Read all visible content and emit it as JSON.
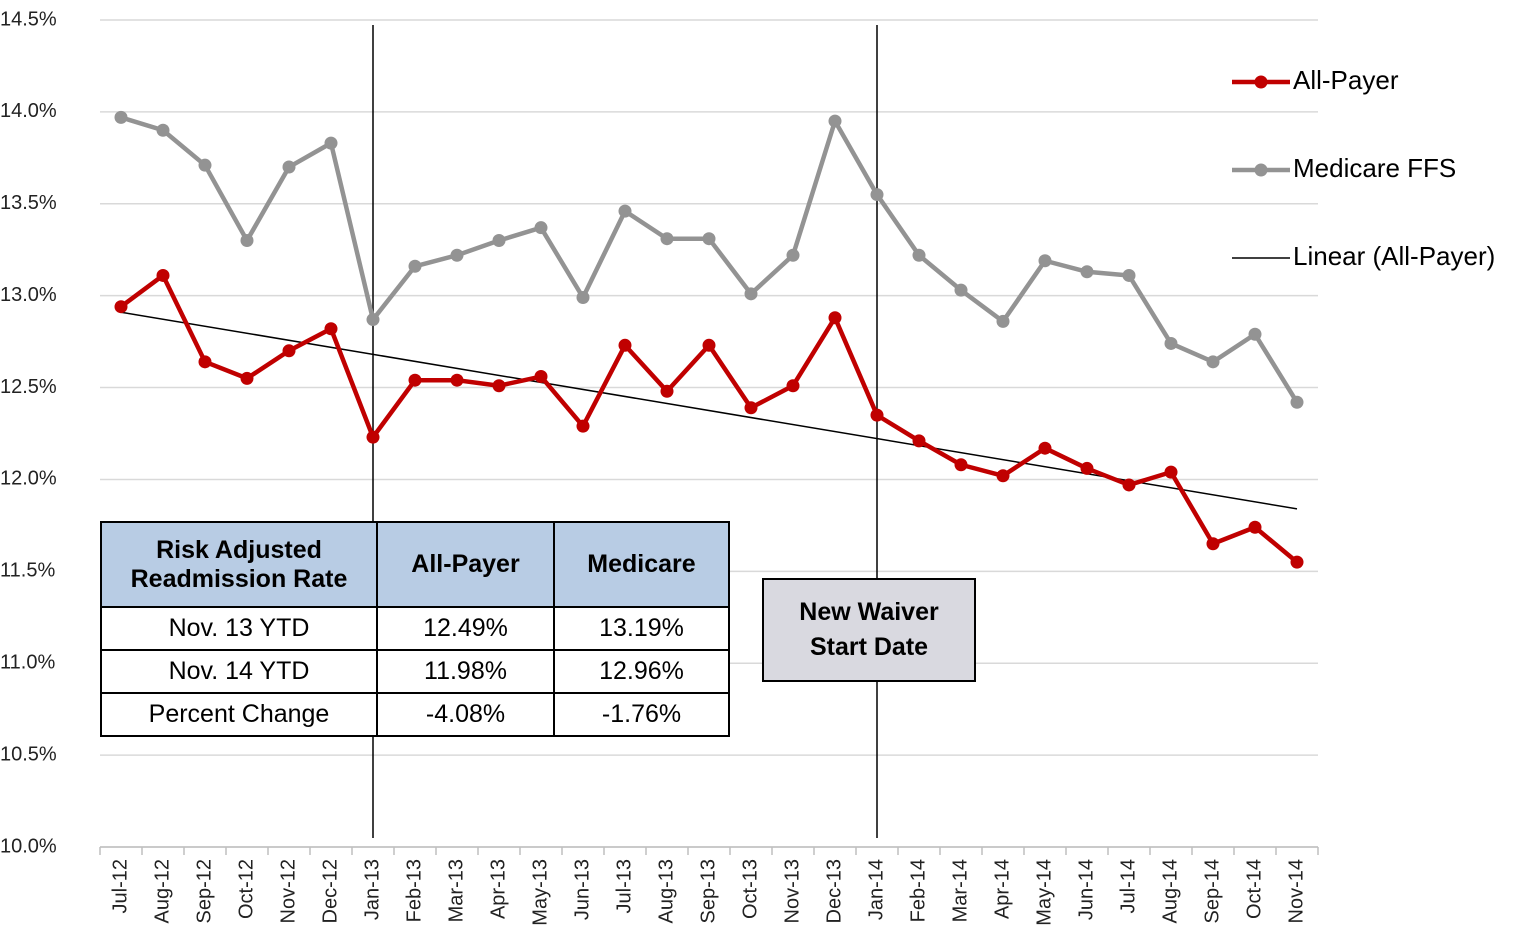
{
  "chart_data": {
    "type": "line",
    "categories": [
      "Jul-12",
      "Aug-12",
      "Sep-12",
      "Oct-12",
      "Nov-12",
      "Dec-12",
      "Jan-13",
      "Feb-13",
      "Mar-13",
      "Apr-13",
      "May-13",
      "Jun-13",
      "Jul-13",
      "Aug-13",
      "Sep-13",
      "Oct-13",
      "Nov-13",
      "Dec-13",
      "Jan-14",
      "Feb-14",
      "Mar-14",
      "Apr-14",
      "May-14",
      "Jun-14",
      "Jul-14",
      "Aug-14",
      "Sep-14",
      "Oct-14",
      "Nov-14"
    ],
    "series": [
      {
        "name": "All-Payer",
        "color": "#c00000",
        "values": [
          12.94,
          13.11,
          12.64,
          12.55,
          12.7,
          12.82,
          12.23,
          12.54,
          12.54,
          12.51,
          12.56,
          12.29,
          12.73,
          12.48,
          12.73,
          12.39,
          12.51,
          12.88,
          12.35,
          12.21,
          12.08,
          12.02,
          12.17,
          12.06,
          11.97,
          12.04,
          11.65,
          11.74,
          11.55
        ]
      },
      {
        "name": "Medicare FFS",
        "color": "#939393",
        "values": [
          13.97,
          13.9,
          13.71,
          13.3,
          13.7,
          13.83,
          12.87,
          13.16,
          13.22,
          13.3,
          13.37,
          12.99,
          13.46,
          13.31,
          13.31,
          13.01,
          13.22,
          13.95,
          13.55,
          13.22,
          13.03,
          12.86,
          13.19,
          13.13,
          13.11,
          12.74,
          12.64,
          12.79,
          12.42
        ]
      }
    ],
    "trendline": {
      "name": "Linear (All-Payer)",
      "color": "#000000",
      "values": [
        12.91,
        11.84
      ]
    },
    "vlines": [
      "Jan-13",
      "Jan-14"
    ],
    "annotation": "New Waiver Start Date",
    "ylim": [
      10.0,
      14.5
    ],
    "yticks": [
      {
        "value": 10.0,
        "label": "10.0%"
      },
      {
        "value": 10.5,
        "label": "10.5%"
      },
      {
        "value": 11.0,
        "label": "11.0%"
      },
      {
        "value": 11.5,
        "label": "11.5%"
      },
      {
        "value": 12.0,
        "label": "12.0%"
      },
      {
        "value": 12.5,
        "label": "12.5%"
      },
      {
        "value": 13.0,
        "label": "13.0%"
      },
      {
        "value": 13.5,
        "label": "13.5%"
      },
      {
        "value": 14.0,
        "label": "14.0%"
      },
      {
        "value": 14.5,
        "label": "14.5%"
      }
    ],
    "grid": true,
    "legend": "right"
  },
  "table": {
    "header": [
      "Risk Adjusted Readmission Rate",
      "All-Payer",
      "Medicare"
    ],
    "rows": [
      [
        "Nov. 13 YTD",
        "12.49%",
        "13.19%"
      ],
      [
        "Nov. 14 YTD",
        "11.98%",
        "12.96%"
      ],
      [
        "Percent Change",
        "-4.08%",
        "-1.76%"
      ]
    ]
  }
}
